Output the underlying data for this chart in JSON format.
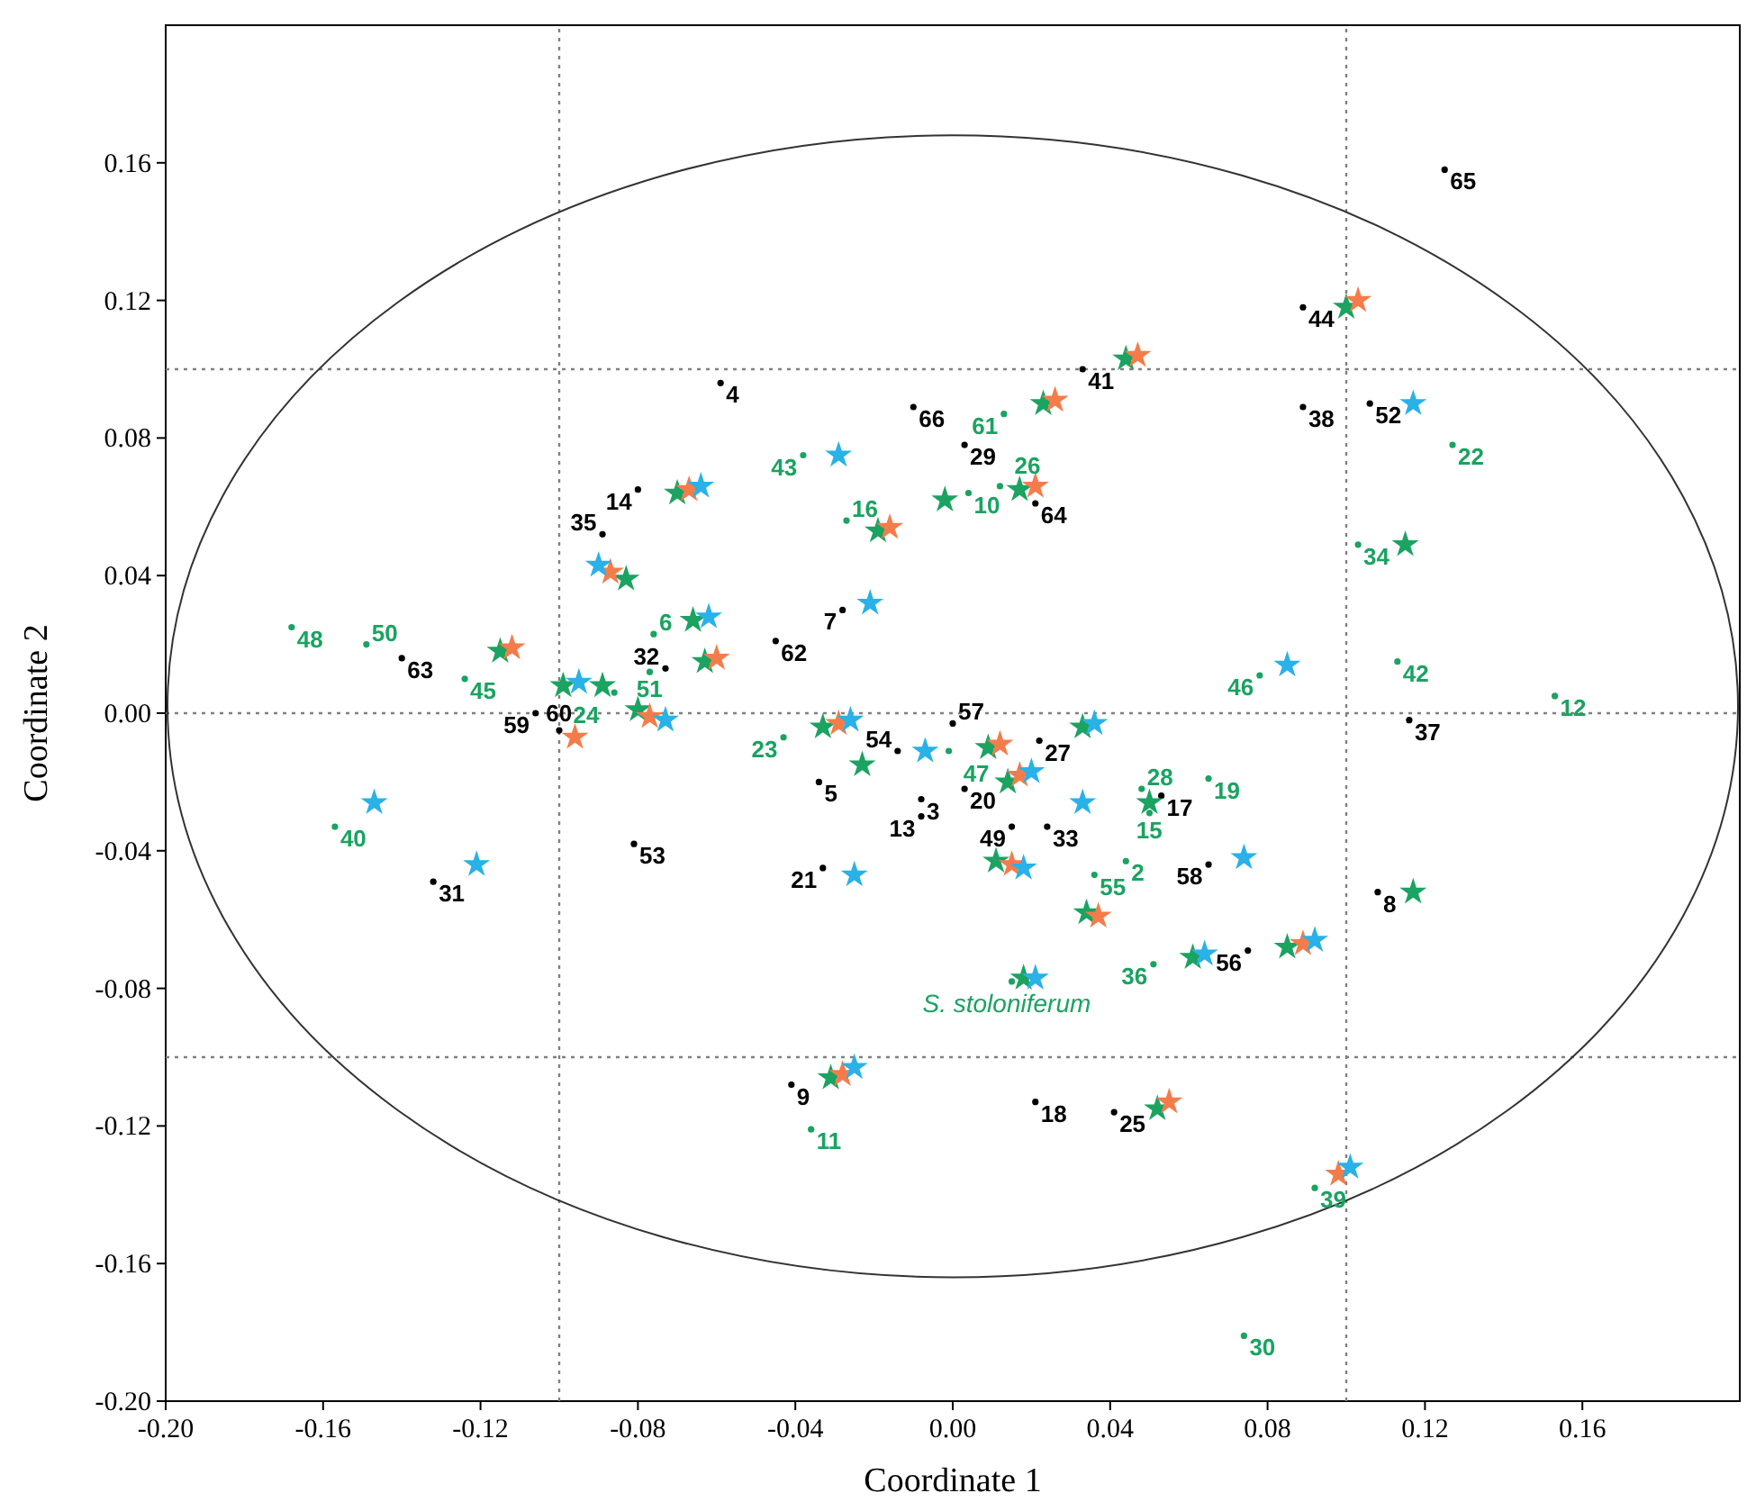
{
  "chart_data": {
    "type": "scatter",
    "xlabel": "Coordinate 1",
    "ylabel": "Coordinate 2",
    "xlim": [
      -0.2,
      0.2
    ],
    "ylim": [
      -0.2,
      0.2
    ],
    "xticks": [
      {
        "value": -0.2,
        "label": "-0.20"
      },
      {
        "value": -0.16,
        "label": "-0.16"
      },
      {
        "value": -0.12,
        "label": "-0.12"
      },
      {
        "value": -0.08,
        "label": "-0.08"
      },
      {
        "value": -0.04,
        "label": "-0.04"
      },
      {
        "value": 0,
        "label": "0.00"
      },
      {
        "value": 0.04,
        "label": "0.04"
      },
      {
        "value": 0.08,
        "label": "0.08"
      },
      {
        "value": 0.12,
        "label": "0.12"
      },
      {
        "value": 0.16,
        "label": "0.16"
      }
    ],
    "yticks": [
      {
        "value": -0.2,
        "label": "-0.20"
      },
      {
        "value": -0.16,
        "label": "-0.16"
      },
      {
        "value": -0.12,
        "label": "-0.12"
      },
      {
        "value": -0.08,
        "label": "-0.08"
      },
      {
        "value": -0.04,
        "label": "-0.04"
      },
      {
        "value": 0,
        "label": "0.00"
      },
      {
        "value": 0.04,
        "label": "0.04"
      },
      {
        "value": 0.08,
        "label": "0.08"
      },
      {
        "value": 0.12,
        "label": "0.12"
      },
      {
        "value": 0.16,
        "label": "0.16"
      }
    ],
    "grid": false,
    "ref_lines": [
      {
        "axis": "x",
        "value": -0.1,
        "color": "#808080",
        "line_style": "dotted"
      },
      {
        "axis": "x",
        "value": 0.1,
        "color": "#808080",
        "line_style": "dotted"
      },
      {
        "axis": "y",
        "value": 0.1,
        "color": "#808080",
        "line_style": "dotted"
      },
      {
        "axis": "y",
        "value": 0,
        "color": "#808080",
        "line_style": "dotted"
      },
      {
        "axis": "y",
        "value": -0.1,
        "color": "#808080",
        "line_style": "dotted"
      }
    ],
    "annotations": [
      {
        "text": "65",
        "x": 0.125,
        "y": 0.158
      },
      {
        "text": "44",
        "x": 0.089,
        "y": 0.118
      },
      {
        "text": "41",
        "x": 0.033,
        "y": 0.1
      },
      {
        "text": "4",
        "x": -0.059,
        "y": 0.096
      },
      {
        "text": "66",
        "x": -0.01,
        "y": 0.089
      },
      {
        "text": "29",
        "x": 0.003,
        "y": 0.078
      },
      {
        "text": "38",
        "x": 0.089,
        "y": 0.089
      },
      {
        "text": "52",
        "x": 0.106,
        "y": 0.09
      },
      {
        "text": "14",
        "x": -0.08,
        "y": 0.065
      },
      {
        "text": "64",
        "x": 0.021,
        "y": 0.061
      },
      {
        "text": "35",
        "x": -0.089,
        "y": 0.052
      },
      {
        "text": "7",
        "x": -0.028,
        "y": 0.03
      },
      {
        "text": "62",
        "x": -0.045,
        "y": 0.021
      },
      {
        "text": "63",
        "x": -0.14,
        "y": 0.016
      },
      {
        "text": "32",
        "x": -0.073,
        "y": 0.013
      },
      {
        "text": "59",
        "x": -0.106,
        "y": 0.0
      },
      {
        "text": "60",
        "x": -0.1,
        "y": -0.005
      },
      {
        "text": "53",
        "x": -0.081,
        "y": -0.038
      },
      {
        "text": "31",
        "x": -0.132,
        "y": -0.049
      },
      {
        "text": "21",
        "x": -0.033,
        "y": -0.045
      },
      {
        "text": "5",
        "x": -0.034,
        "y": -0.02
      },
      {
        "text": "54",
        "x": -0.014,
        "y": -0.011
      },
      {
        "text": "57",
        "x": 0.0,
        "y": -0.003
      },
      {
        "text": "3",
        "x": -0.008,
        "y": -0.025
      },
      {
        "text": "13",
        "x": -0.008,
        "y": -0.03
      },
      {
        "text": "20",
        "x": 0.003,
        "y": -0.022
      },
      {
        "text": "27",
        "x": 0.022,
        "y": -0.008
      },
      {
        "text": "33",
        "x": 0.024,
        "y": -0.033
      },
      {
        "text": "49",
        "x": 0.015,
        "y": -0.033
      },
      {
        "text": "17",
        "x": 0.053,
        "y": -0.024
      },
      {
        "text": "58",
        "x": 0.065,
        "y": -0.044
      },
      {
        "text": "8",
        "x": 0.108,
        "y": -0.052
      },
      {
        "text": "37",
        "x": 0.116,
        "y": -0.002
      },
      {
        "text": "56",
        "x": 0.075,
        "y": -0.069
      },
      {
        "text": "9",
        "x": -0.041,
        "y": -0.108
      },
      {
        "text": "18",
        "x": 0.021,
        "y": -0.113
      },
      {
        "text": "25",
        "x": 0.041,
        "y": -0.116
      },
      {
        "text": "48",
        "x": -0.168,
        "y": 0.025
      },
      {
        "text": "50",
        "x": -0.149,
        "y": 0.02
      },
      {
        "text": "45",
        "x": -0.124,
        "y": 0.01
      },
      {
        "text": "40",
        "x": -0.157,
        "y": -0.033
      },
      {
        "text": "43",
        "x": -0.038,
        "y": 0.075
      },
      {
        "text": "16",
        "x": -0.027,
        "y": 0.056
      },
      {
        "text": "10",
        "x": 0.004,
        "y": 0.064
      },
      {
        "text": "26",
        "x": 0.012,
        "y": 0.066
      },
      {
        "text": "61",
        "x": 0.013,
        "y": 0.087
      },
      {
        "text": "22",
        "x": 0.127,
        "y": 0.078
      },
      {
        "text": "34",
        "x": 0.103,
        "y": 0.049
      },
      {
        "text": "46",
        "x": 0.078,
        "y": 0.011
      },
      {
        "text": "42",
        "x": 0.113,
        "y": 0.015
      },
      {
        "text": "12",
        "x": 0.153,
        "y": 0.005
      },
      {
        "text": "6",
        "x": -0.076,
        "y": 0.023
      },
      {
        "text": "24",
        "x": -0.086,
        "y": 0.006
      },
      {
        "text": "51",
        "x": -0.077,
        "y": 0.012
      },
      {
        "text": "23",
        "x": -0.043,
        "y": -0.007
      },
      {
        "text": "47",
        "x": -0.001,
        "y": -0.011
      },
      {
        "text": "28",
        "x": 0.048,
        "y": -0.022
      },
      {
        "text": "15",
        "x": 0.05,
        "y": -0.029
      },
      {
        "text": "19",
        "x": 0.065,
        "y": -0.019
      },
      {
        "text": "2",
        "x": 0.044,
        "y": -0.043
      },
      {
        "text": "55",
        "x": 0.036,
        "y": -0.047
      },
      {
        "text": "36",
        "x": 0.051,
        "y": -0.073
      },
      {
        "text": "11",
        "x": -0.036,
        "y": -0.121
      },
      {
        "text": "39",
        "x": 0.092,
        "y": -0.138
      },
      {
        "text": "30",
        "x": 0.074,
        "y": -0.181
      },
      {
        "text": "S. stoloniferum",
        "x": 0.015,
        "y": -0.078
      }
    ],
    "series": [
      {
        "marker": "circle",
        "color": "#000000",
        "x": [
          0.125,
          0.089,
          0.033,
          -0.059,
          -0.01,
          0.003,
          0.089,
          0.106,
          -0.08,
          0.021,
          -0.089,
          -0.028,
          -0.045,
          -0.14,
          -0.073,
          -0.106,
          -0.1,
          -0.081,
          -0.132,
          -0.033,
          -0.034,
          -0.014,
          0.0,
          -0.008,
          -0.008,
          0.003,
          0.022,
          0.024,
          0.015,
          0.053,
          0.065,
          0.108,
          0.116,
          0.075,
          -0.041,
          0.021,
          0.041
        ],
        "values": [
          0.158,
          0.118,
          0.1,
          0.096,
          0.089,
          0.078,
          0.089,
          0.09,
          0.065,
          0.061,
          0.052,
          0.03,
          0.021,
          0.016,
          0.013,
          0.0,
          -0.005,
          -0.038,
          -0.049,
          -0.045,
          -0.02,
          -0.011,
          -0.003,
          -0.025,
          -0.03,
          -0.022,
          -0.008,
          -0.033,
          -0.033,
          -0.024,
          -0.044,
          -0.052,
          -0.002,
          -0.069,
          -0.108,
          -0.113,
          -0.116
        ]
      },
      {
        "marker": "circle",
        "color": "#1aa361",
        "x": [
          -0.168,
          -0.149,
          -0.124,
          -0.157,
          -0.038,
          -0.027,
          0.004,
          0.012,
          0.013,
          0.127,
          0.103,
          0.078,
          0.113,
          0.153,
          -0.076,
          -0.086,
          -0.077,
          -0.043,
          -0.001,
          0.048,
          0.05,
          0.065,
          0.044,
          0.036,
          0.051,
          -0.036,
          0.092,
          0.074,
          0.015
        ],
        "values": [
          0.025,
          0.02,
          0.01,
          -0.033,
          0.075,
          0.056,
          0.064,
          0.066,
          0.087,
          0.078,
          0.049,
          0.011,
          0.015,
          0.005,
          0.023,
          0.006,
          0.012,
          -0.007,
          -0.011,
          -0.022,
          -0.029,
          -0.019,
          -0.043,
          -0.047,
          -0.073,
          -0.121,
          -0.138,
          -0.181,
          -0.078
        ]
      },
      {
        "marker": "star",
        "color": "#1aa361",
        "x": [
          0.1,
          0.044,
          0.023,
          -0.07,
          -0.019,
          -0.002,
          0.017,
          0.115,
          -0.083,
          -0.066,
          -0.063,
          -0.115,
          -0.099,
          -0.089,
          -0.08,
          -0.033,
          -0.023,
          0.009,
          0.033,
          0.014,
          0.05,
          0.011,
          0.034,
          0.117,
          0.085,
          0.061,
          0.018,
          -0.031,
          0.052
        ],
        "values": [
          0.118,
          0.103,
          0.09,
          0.064,
          0.053,
          0.062,
          0.065,
          0.049,
          0.039,
          0.027,
          0.015,
          0.018,
          0.008,
          0.008,
          0.001,
          -0.004,
          -0.015,
          -0.01,
          -0.004,
          -0.02,
          -0.026,
          -0.043,
          -0.058,
          -0.052,
          -0.068,
          -0.071,
          -0.077,
          -0.106,
          -0.115
        ]
      },
      {
        "marker": "star",
        "color": "#f47c4a",
        "x": [
          0.103,
          0.047,
          0.026,
          -0.067,
          -0.016,
          0.021,
          -0.087,
          -0.06,
          -0.112,
          -0.077,
          -0.096,
          -0.029,
          0.012,
          0.017,
          0.015,
          0.037,
          0.089,
          -0.028,
          0.055,
          0.098
        ],
        "values": [
          0.12,
          0.104,
          0.091,
          0.065,
          0.054,
          0.066,
          0.041,
          0.016,
          0.019,
          -0.001,
          -0.007,
          -0.003,
          -0.009,
          -0.018,
          -0.044,
          -0.059,
          -0.067,
          -0.105,
          -0.113,
          -0.134
        ]
      },
      {
        "marker": "star",
        "color": "#29b1e8",
        "x": [
          0.117,
          -0.029,
          -0.064,
          -0.09,
          -0.021,
          -0.062,
          -0.095,
          -0.073,
          0.085,
          -0.026,
          -0.007,
          0.036,
          0.02,
          0.033,
          0.018,
          0.074,
          -0.025,
          0.092,
          0.064,
          0.021,
          -0.025,
          0.101,
          -0.147,
          -0.121
        ],
        "values": [
          0.09,
          0.075,
          0.066,
          0.043,
          0.032,
          0.028,
          0.009,
          -0.002,
          0.014,
          -0.002,
          -0.011,
          -0.003,
          -0.017,
          -0.026,
          -0.045,
          -0.042,
          -0.047,
          -0.066,
          -0.07,
          -0.077,
          -0.103,
          -0.132,
          -0.026,
          -0.044
        ]
      }
    ]
  }
}
